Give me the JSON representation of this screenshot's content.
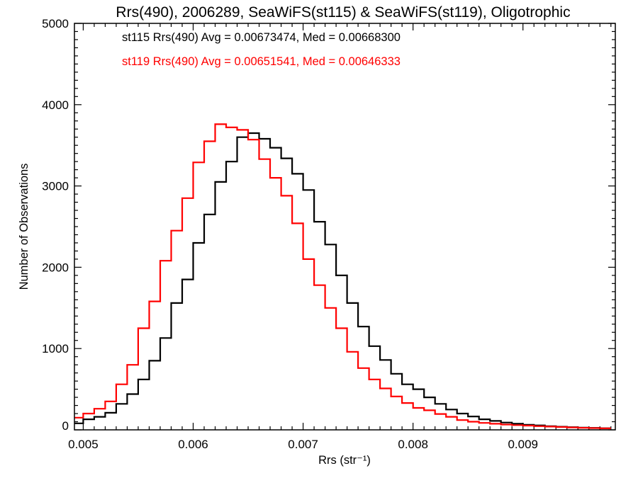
{
  "chart_data": {
    "type": "histogram",
    "title": "Rrs(490), 2006289, SeaWiFS(st115) & SeaWiFS(st119), Oligotrophic",
    "xlabel": "Rrs (str⁻¹)",
    "ylabel": "Number of Observations",
    "xlim": [
      0.00492,
      0.00984
    ],
    "ylim": [
      0,
      5000
    ],
    "xticks": [
      0.005,
      0.006,
      0.007,
      0.008,
      0.009
    ],
    "xtick_labels": [
      "0.005",
      "0.006",
      "0.007",
      "0.008",
      "0.009"
    ],
    "yticks": [
      0,
      1000,
      2000,
      3000,
      4000,
      5000
    ],
    "ytick_labels": [
      "0",
      "1000",
      "2000",
      "3000",
      "4000",
      "5000"
    ],
    "grid": false,
    "legend_placement": "top-left",
    "bin_start": 0.0049,
    "bin_width": 0.0001,
    "series": [
      {
        "name": "st115",
        "label": "st115 Rrs(490) Avg = 0.00673474, Med = 0.00668300",
        "color": "#000000",
        "values": [
          80,
          130,
          160,
          210,
          320,
          440,
          620,
          850,
          1130,
          1560,
          1850,
          2300,
          2650,
          3050,
          3300,
          3600,
          3650,
          3580,
          3470,
          3340,
          3150,
          2950,
          2560,
          2280,
          1900,
          1560,
          1270,
          1030,
          860,
          690,
          560,
          500,
          400,
          320,
          250,
          200,
          165,
          130,
          110,
          90,
          75,
          62,
          55,
          45,
          38,
          33,
          28,
          24,
          20
        ]
      },
      {
        "name": "st119",
        "label": "st119 Rrs(490) Avg = 0.00651541, Med = 0.00646333",
        "color": "#ff0000",
        "values": [
          150,
          200,
          260,
          350,
          560,
          800,
          1250,
          1580,
          2080,
          2450,
          2850,
          3290,
          3550,
          3760,
          3720,
          3690,
          3570,
          3330,
          3100,
          2880,
          2540,
          2100,
          1780,
          1500,
          1250,
          960,
          760,
          620,
          510,
          410,
          330,
          270,
          240,
          195,
          160,
          120,
          100,
          85,
          75,
          65,
          58,
          52,
          45,
          40,
          35,
          30,
          25,
          22,
          18
        ]
      }
    ]
  }
}
